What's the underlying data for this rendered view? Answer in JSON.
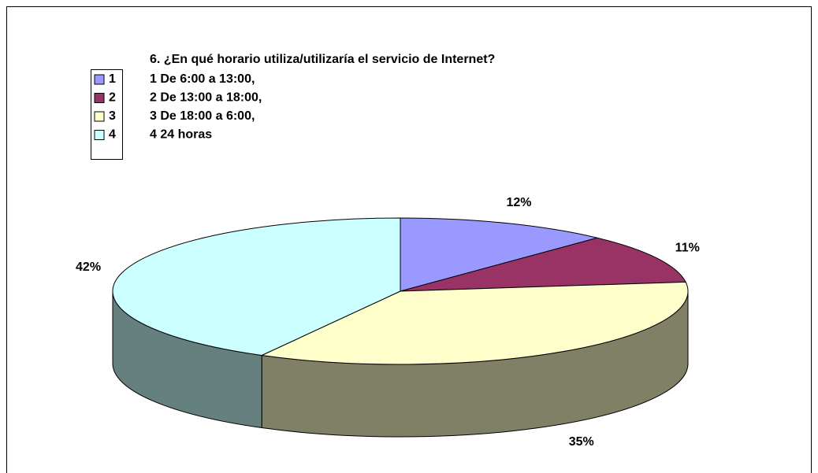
{
  "chart_data": {
    "type": "pie",
    "title": "6. ¿En qué horario utiliza/utilizaría el servicio de Internet?",
    "categories": [
      "1",
      "2",
      "3",
      "4"
    ],
    "notes": [
      "1 De 6:00 a 13:00,",
      "2 De 13:00 a 18:00,",
      "3 De 18:00 a 6:00,",
      "4 24 horas"
    ],
    "values": [
      12,
      11,
      35,
      42
    ],
    "value_labels": [
      "12%",
      "11%",
      "35%",
      "42%"
    ],
    "colors": [
      "#9999ff",
      "#993366",
      "#ffffcc",
      "#ccffff"
    ],
    "legend": "upper left"
  }
}
